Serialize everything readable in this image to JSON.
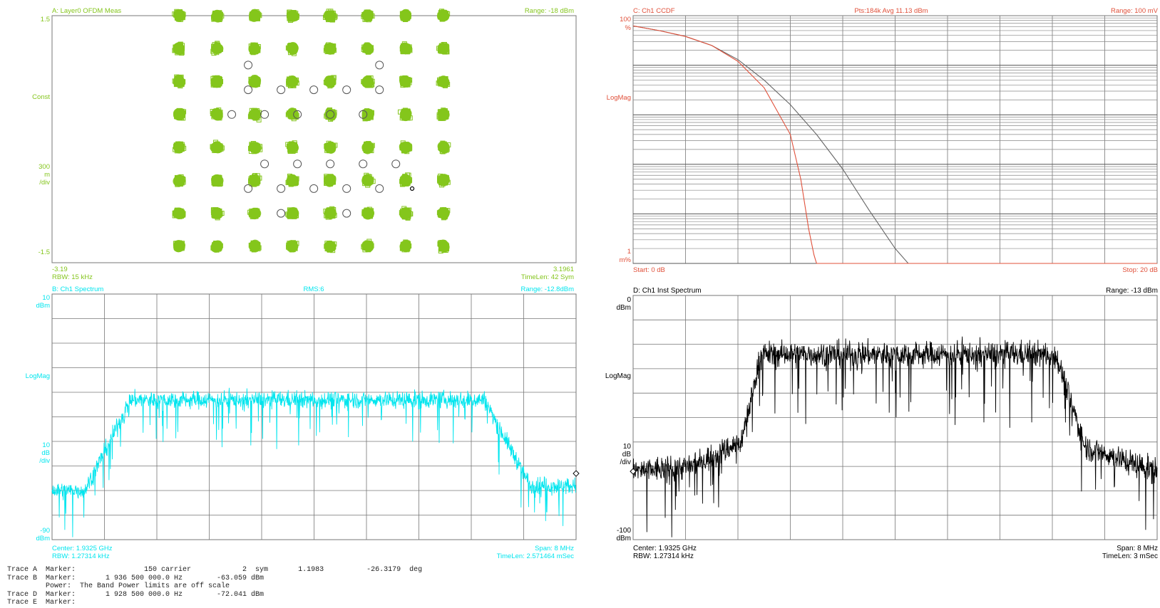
{
  "colors": {
    "A": "#84c51c",
    "A_ref": "#555555",
    "B": "#00e5ee",
    "C_title": "#e0503a",
    "C_trace": "#e0503a",
    "C_ref": "#666666",
    "D": "#000000",
    "grid": "#777777"
  },
  "panels": {
    "A": {
      "title": "A: Layer0 OFDM Meas",
      "range": "Range: -18 dBm",
      "y_top": "1.5",
      "y_mid": "Const",
      "scale": [
        "300",
        "m",
        "/div"
      ],
      "y_bot": "-1.5",
      "x_left": "-3.19",
      "x_right": "3.1961",
      "footer_left": "RBW: 15 kHz",
      "footer_right": "TimeLen: 42  Sym"
    },
    "B": {
      "title": "B: Ch1 Spectrum",
      "center_title": "RMS:6",
      "range": "Range: -12.8dBm",
      "y_top": [
        "10",
        "dBm"
      ],
      "y_mid": "LogMag",
      "scale": [
        "10",
        "dB",
        "/div"
      ],
      "y_bot": [
        "-90",
        "dBm"
      ],
      "footer_left_1": "Center: 1.9325 GHz",
      "footer_left_2": "RBW: 1.27314 kHz",
      "footer_right_1": "Span: 8 MHz",
      "footer_right_2": "TimeLen: 2.571464 mSec"
    },
    "C": {
      "title": "C: Ch1 CCDF",
      "center_title": "Pts:184k Avg 11.13 dBm",
      "range": "Range: 100 mV",
      "y_top": [
        "100",
        "%"
      ],
      "y_mid": "LogMag",
      "y_bot": [
        "1",
        "m%"
      ],
      "footer_left": "Start: 0 dB",
      "footer_right": "Stop: 20 dB"
    },
    "D": {
      "title": "D: Ch1 Inst Spectrum",
      "range": "Range: -13 dBm",
      "y_top": [
        "0",
        "dBm"
      ],
      "y_mid": "LogMag",
      "scale": [
        "10",
        "dB",
        "/div"
      ],
      "y_bot": [
        "-100",
        "dBm"
      ],
      "footer_left_1": "Center: 1.9325 GHz",
      "footer_left_2": "RBW: 1.27314 kHz",
      "footer_right_1": "Span: 8 MHz",
      "footer_right_2": "TimeLen: 3 mSec"
    }
  },
  "marker_lines": [
    "Trace A  Marker:                150 carrier            2  sym       1.1983          -26.3179  deg",
    "Trace B  Marker:       1 936 500 000.0 Hz        -63.059 dBm",
    "         Power:  The Band Power limits are off scale",
    "Trace D  Marker:       1 928 500 000.0 Hz        -72.041 dBm",
    "Trace E  Marker:"
  ],
  "chart_data": [
    {
      "panel": "A",
      "type": "scatter",
      "title": "A: Layer0 OFDM Meas",
      "xlim": [
        -3.19,
        3.1961
      ],
      "ylim": [
        -1.5,
        1.5
      ],
      "grid_cols": 8,
      "grid_rows": 8,
      "series": [
        {
          "name": "measured",
          "style": "squares",
          "cluster_centers_x": [
            -1.64,
            -1.18,
            -0.72,
            -0.26,
            0.2,
            0.66,
            1.12,
            1.58
          ],
          "cluster_centers_y": [
            1.5,
            1.1,
            0.7,
            0.3,
            -0.1,
            -0.5,
            -0.9,
            -1.3
          ]
        },
        {
          "name": "reference",
          "style": "circles",
          "points": [
            [
              -0.8,
              0.6
            ],
            [
              -0.4,
              0.6
            ],
            [
              0,
              0.6
            ],
            [
              0.4,
              0.6
            ],
            [
              0.8,
              0.6
            ],
            [
              -1.0,
              0.3
            ],
            [
              -0.6,
              0.3
            ],
            [
              -0.2,
              0.3
            ],
            [
              0.2,
              0.3
            ],
            [
              0.6,
              0.3
            ],
            [
              -0.6,
              -0.3
            ],
            [
              -0.2,
              -0.3
            ],
            [
              0.2,
              -0.3
            ],
            [
              0.6,
              -0.3
            ],
            [
              1.0,
              -0.3
            ],
            [
              -0.8,
              -0.6
            ],
            [
              -0.4,
              -0.6
            ],
            [
              0,
              -0.6
            ],
            [
              0.4,
              -0.6
            ],
            [
              0.8,
              -0.6
            ],
            [
              -0.4,
              -0.9
            ],
            [
              0.4,
              -0.9
            ],
            [
              -0.8,
              0.9
            ],
            [
              0.8,
              0.9
            ]
          ]
        }
      ],
      "marker": {
        "x": 1.1983,
        "y": -0.6
      }
    },
    {
      "panel": "B",
      "type": "line",
      "title": "B: Ch1 Spectrum",
      "ylabel": "LogMag",
      "xlim": [
        1928500000,
        1936500000
      ],
      "ylim": [
        -90,
        10
      ],
      "grid_cols": 10,
      "grid_rows": 10,
      "series": [
        {
          "name": "Ch1 Spectrum",
          "profile": [
            [
              1928500000,
              -70
            ],
            [
              1928950000,
              -70
            ],
            [
              1929000000,
              -70
            ],
            [
              1929700000,
              -33
            ],
            [
              1935100000,
              -33
            ],
            [
              1935800000,
              -68
            ],
            [
              1936500000,
              -68
            ]
          ],
          "noise_amp": 6
        }
      ],
      "marker": {
        "x": 1936500000,
        "y": -63.059
      }
    },
    {
      "panel": "C",
      "type": "line",
      "title": "C: Ch1 CCDF",
      "xlabel": "",
      "ylabel": "LogMag",
      "xlim": [
        0,
        20
      ],
      "ylim": [
        0.001,
        100
      ],
      "yscale": "log",
      "grid_cols": 10,
      "grid_rows": 5,
      "series": [
        {
          "name": "measured",
          "x": [
            0,
            1,
            2,
            3,
            4,
            5,
            6,
            6.4,
            6.7,
            6.9,
            7.0
          ],
          "y": [
            62,
            50,
            38,
            25,
            12,
            3.5,
            0.4,
            0.05,
            0.005,
            0.0015,
            0.001
          ]
        },
        {
          "name": "reference",
          "x": [
            0,
            1,
            2,
            3,
            4,
            5,
            6,
            7,
            8,
            9,
            10,
            10.5
          ],
          "y": [
            62,
            50,
            38,
            25,
            13,
            5,
            1.6,
            0.4,
            0.08,
            0.012,
            0.002,
            0.001
          ]
        }
      ]
    },
    {
      "panel": "D",
      "type": "line",
      "title": "D: Ch1 Inst Spectrum",
      "ylabel": "LogMag",
      "xlim": [
        1928500000,
        1936500000
      ],
      "ylim": [
        -100,
        0
      ],
      "grid_cols": 10,
      "grid_rows": 10,
      "series": [
        {
          "name": "Ch1 Inst Spectrum",
          "profile": [
            [
              1928500000,
              -72
            ],
            [
              1929400000,
              -70
            ],
            [
              1930150000,
              -60
            ],
            [
              1930450000,
              -24
            ],
            [
              1934950000,
              -24
            ],
            [
              1935400000,
              -62
            ],
            [
              1936500000,
              -72
            ]
          ],
          "noise_amp": 9
        }
      ],
      "marker": {
        "x": 1928500000,
        "y": -72.041
      }
    }
  ]
}
